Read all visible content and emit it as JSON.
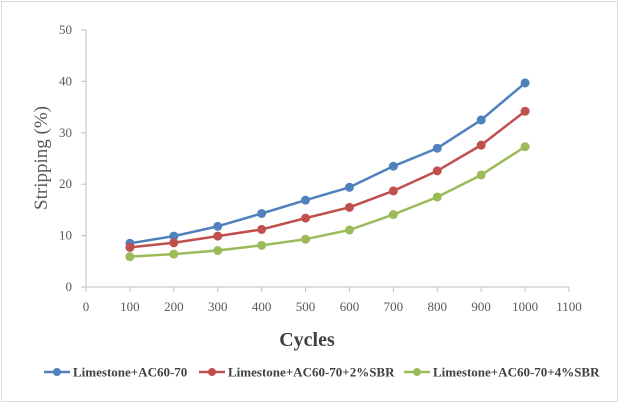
{
  "chart_data": {
    "type": "line",
    "title": "",
    "xlabel": "Cycles",
    "ylabel": "Stripping (%)",
    "xlim": [
      0,
      1100
    ],
    "ylim": [
      0,
      50
    ],
    "xticks": [
      "0",
      "100",
      "200",
      "300",
      "400",
      "500",
      "600",
      "700",
      "800",
      "900",
      "1000",
      "1100"
    ],
    "yticks": [
      "0",
      "10",
      "20",
      "30",
      "40",
      "50"
    ],
    "grid": "none",
    "legend_position": "bottom",
    "x": [
      100,
      200,
      300,
      400,
      500,
      600,
      700,
      800,
      900,
      1000
    ],
    "series": [
      {
        "name": "Limestone+AC60-70",
        "color": "#4f81bd",
        "values": [
          8.5,
          9.9,
          11.8,
          14.3,
          16.9,
          19.4,
          23.5,
          27.0,
          32.5,
          39.7
        ]
      },
      {
        "name": "Limestone+AC60-70+2%SBR",
        "color": "#c0504d",
        "values": [
          7.7,
          8.6,
          9.9,
          11.2,
          13.4,
          15.5,
          18.7,
          22.6,
          27.6,
          34.2
        ]
      },
      {
        "name": "Limestone+AC60-70+4%SBR",
        "color": "#9bbb59",
        "values": [
          5.9,
          6.4,
          7.1,
          8.1,
          9.3,
          11.1,
          14.1,
          17.5,
          21.8,
          27.3
        ]
      }
    ]
  }
}
